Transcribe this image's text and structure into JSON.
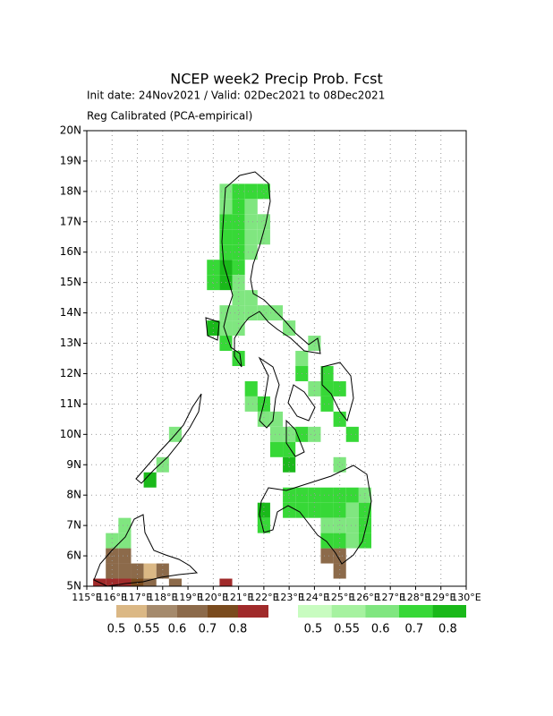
{
  "chart_data": {
    "type": "gridmap",
    "title": "NCEP week2 Precip Prob. Fcst",
    "subtitle": "Init date: 24Nov2021 / Valid: 02Dec2021 to 08Dec2021",
    "subtitle2": "Reg Calibrated (PCA-empirical)",
    "xlim": [
      115,
      130
    ],
    "ylim": [
      5,
      20
    ],
    "xticks": [
      {
        "value": 115,
        "label": "115°E"
      },
      {
        "value": 116,
        "label": "116°E"
      },
      {
        "value": 117,
        "label": "117°E"
      },
      {
        "value": 118,
        "label": "118°E"
      },
      {
        "value": 119,
        "label": "119°E"
      },
      {
        "value": 120,
        "label": "120°E"
      },
      {
        "value": 121,
        "label": "121°E"
      },
      {
        "value": 122,
        "label": "122°E"
      },
      {
        "value": 123,
        "label": "123°E"
      },
      {
        "value": 124,
        "label": "124°E"
      },
      {
        "value": 125,
        "label": "125°E"
      },
      {
        "value": 126,
        "label": "126°E"
      },
      {
        "value": 127,
        "label": "127°E"
      },
      {
        "value": 128,
        "label": "128°E"
      },
      {
        "value": 129,
        "label": "129°E"
      },
      {
        "value": 130,
        "label": "130°E"
      }
    ],
    "yticks": [
      {
        "value": 5,
        "label": "5N"
      },
      {
        "value": 6,
        "label": "6N"
      },
      {
        "value": 7,
        "label": "7N"
      },
      {
        "value": 8,
        "label": "8N"
      },
      {
        "value": 9,
        "label": "9N"
      },
      {
        "value": 10,
        "label": "10N"
      },
      {
        "value": 11,
        "label": "11N"
      },
      {
        "value": 12,
        "label": "12N"
      },
      {
        "value": 13,
        "label": "13N"
      },
      {
        "value": 14,
        "label": "14N"
      },
      {
        "value": 15,
        "label": "15N"
      },
      {
        "value": 16,
        "label": "16N"
      },
      {
        "value": 17,
        "label": "17N"
      },
      {
        "value": 18,
        "label": "18N"
      },
      {
        "value": 19,
        "label": "19N"
      },
      {
        "value": 20,
        "label": "20N"
      }
    ],
    "grid": true,
    "cell_size": 0.5,
    "colorbars": [
      {
        "colors": [
          "#dbb885",
          "#a58a6c",
          "#8c6a4a",
          "#7a4b1e",
          "#a02a2a"
        ],
        "levels": [
          0.5,
          0.55,
          0.6,
          0.7,
          0.8
        ]
      },
      {
        "colors": [
          "#c8fcc0",
          "#a6f2a0",
          "#80e680",
          "#37d837",
          "#1ab91a"
        ],
        "levels": [
          0.5,
          0.55,
          0.6,
          0.7,
          0.8
        ]
      }
    ],
    "series": [
      {
        "cells": [
          [
            116,
            6,
            0.6
          ],
          [
            116.5,
            6,
            0.6
          ],
          [
            116,
            5.5,
            0.6
          ],
          [
            116.5,
            5.5,
            0.6
          ],
          [
            117,
            5.5,
            0.6
          ],
          [
            117.5,
            5.5,
            0.5
          ],
          [
            118,
            5.5,
            0.6
          ],
          [
            115.5,
            5,
            0.8
          ],
          [
            116,
            5,
            0.8
          ],
          [
            116.5,
            5,
            0.8
          ],
          [
            117,
            5,
            0.7
          ],
          [
            117.5,
            5,
            0.6
          ],
          [
            118.5,
            5,
            0.6
          ],
          [
            120.5,
            5,
            0.8
          ],
          [
            124.5,
            6,
            0.6
          ],
          [
            125,
            6,
            0.6
          ],
          [
            125,
            5.5,
            0.6
          ]
        ]
      },
      {
        "cells": [
          [
            120.5,
            18,
            0.6
          ],
          [
            121,
            18,
            0.7
          ],
          [
            121.5,
            18,
            0.7
          ],
          [
            122,
            18,
            0.7
          ],
          [
            120.5,
            17.5,
            0.6
          ],
          [
            121,
            17.5,
            0.7
          ],
          [
            121.5,
            17.5,
            0.6
          ],
          [
            120.5,
            17,
            0.7
          ],
          [
            121,
            17,
            0.7
          ],
          [
            121.5,
            17,
            0.6
          ],
          [
            122,
            17,
            0.6
          ],
          [
            120.5,
            16.5,
            0.7
          ],
          [
            121,
            16.5,
            0.7
          ],
          [
            121.5,
            16.5,
            0.6
          ],
          [
            122,
            16.5,
            0.6
          ],
          [
            120.5,
            16,
            0.7
          ],
          [
            121,
            16,
            0.7
          ],
          [
            121.5,
            16,
            0.6
          ],
          [
            120,
            15.5,
            0.7
          ],
          [
            120.5,
            15.5,
            0.8
          ],
          [
            121,
            15.5,
            0.7
          ],
          [
            120,
            15,
            0.7
          ],
          [
            120.5,
            15,
            0.8
          ],
          [
            121,
            15,
            0.6
          ],
          [
            121,
            14.5,
            0.6
          ],
          [
            121.5,
            14.5,
            0.6
          ],
          [
            120.5,
            14,
            0.6
          ],
          [
            121,
            14,
            0.6
          ],
          [
            121.5,
            14,
            0.6
          ],
          [
            122,
            14,
            0.6
          ],
          [
            122.5,
            14,
            0.6
          ],
          [
            120,
            13.5,
            0.8
          ],
          [
            120.5,
            13.5,
            0.6
          ],
          [
            121,
            13.5,
            0.6
          ],
          [
            123,
            13.5,
            0.6
          ],
          [
            120.5,
            13,
            0.7
          ],
          [
            124,
            13,
            0.6
          ],
          [
            121,
            12.5,
            0.7
          ],
          [
            123.5,
            12.5,
            0.6
          ],
          [
            123.5,
            12,
            0.7
          ],
          [
            124.5,
            12,
            0.7
          ],
          [
            121.5,
            11.5,
            0.7
          ],
          [
            124,
            11.5,
            0.6
          ],
          [
            124.5,
            11.5,
            0.7
          ],
          [
            125,
            11.5,
            0.7
          ],
          [
            121.5,
            11,
            0.6
          ],
          [
            122,
            11,
            0.7
          ],
          [
            124.5,
            11,
            0.7
          ],
          [
            122,
            10.5,
            0.6
          ],
          [
            122.5,
            10.5,
            0.6
          ],
          [
            125,
            10.5,
            0.7
          ],
          [
            122.5,
            10,
            0.6
          ],
          [
            123,
            10,
            0.6
          ],
          [
            123.5,
            10,
            0.7
          ],
          [
            124,
            10,
            0.6
          ],
          [
            125.5,
            10,
            0.7
          ],
          [
            118.5,
            10,
            0.6
          ],
          [
            122.5,
            9.5,
            0.7
          ],
          [
            123,
            9.5,
            0.7
          ],
          [
            118,
            9,
            0.6
          ],
          [
            123,
            9,
            0.8
          ],
          [
            125,
            9,
            0.6
          ],
          [
            117.5,
            8.5,
            0.8
          ],
          [
            123,
            8,
            0.7
          ],
          [
            123.5,
            8,
            0.7
          ],
          [
            124,
            8,
            0.7
          ],
          [
            124.5,
            8,
            0.7
          ],
          [
            125,
            8,
            0.7
          ],
          [
            125.5,
            8,
            0.7
          ],
          [
            126,
            8,
            0.6
          ],
          [
            122,
            7.5,
            0.8
          ],
          [
            123,
            7.5,
            0.7
          ],
          [
            123.5,
            7.5,
            0.7
          ],
          [
            124,
            7.5,
            0.7
          ],
          [
            124.5,
            7.5,
            0.7
          ],
          [
            125,
            7.5,
            0.7
          ],
          [
            125.5,
            7.5,
            0.6
          ],
          [
            126,
            7.5,
            0.7
          ],
          [
            122,
            7,
            0.7
          ],
          [
            124.5,
            7,
            0.6
          ],
          [
            125,
            7,
            0.6
          ],
          [
            125.5,
            7,
            0.6
          ],
          [
            126,
            7,
            0.7
          ],
          [
            124.5,
            6.5,
            0.7
          ],
          [
            125,
            6.5,
            0.7
          ],
          [
            125.5,
            6.5,
            0.6
          ],
          [
            126,
            6.5,
            0.7
          ],
          [
            116.5,
            7,
            0.6
          ],
          [
            116,
            6.5,
            0.6
          ],
          [
            116.5,
            6.5,
            0.6
          ]
        ]
      }
    ]
  }
}
